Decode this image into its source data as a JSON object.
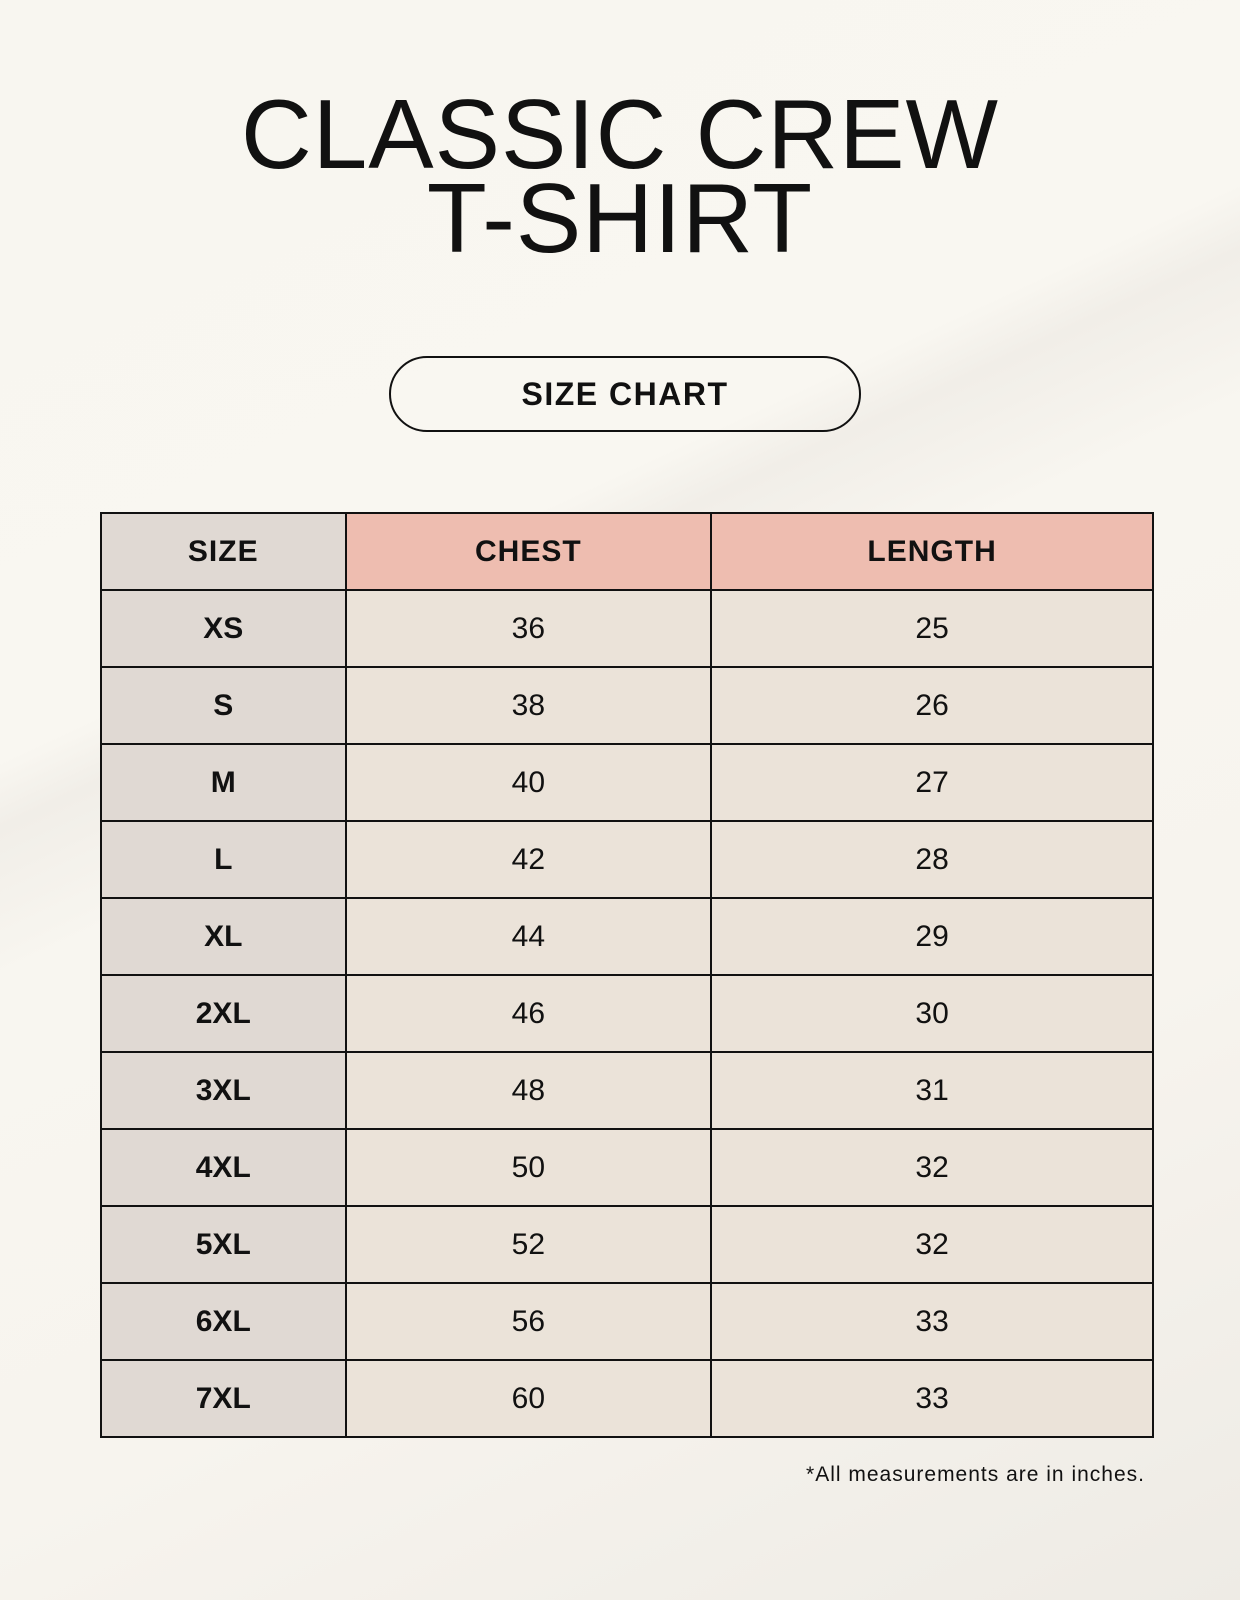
{
  "title": {
    "line1": "CLASSIC CREW",
    "line2": "T-SHIRT"
  },
  "badge": "SIZE CHART",
  "table": {
    "headers": [
      "SIZE",
      "CHEST",
      "LENGTH"
    ],
    "rows": [
      [
        "XS",
        "36",
        "25"
      ],
      [
        "S",
        "38",
        "26"
      ],
      [
        "M",
        "40",
        "27"
      ],
      [
        "L",
        "42",
        "28"
      ],
      [
        "XL",
        "44",
        "29"
      ],
      [
        "2XL",
        "46",
        "30"
      ],
      [
        "3XL",
        "48",
        "31"
      ],
      [
        "4XL",
        "50",
        "32"
      ],
      [
        "5XL",
        "52",
        "32"
      ],
      [
        "6XL",
        "56",
        "33"
      ],
      [
        "7XL",
        "60",
        "33"
      ]
    ]
  },
  "footnote": "*All measurements are in inches.",
  "colors": {
    "header_accent": "#eebdb0",
    "size_column": "#e0d9d3",
    "value_cells": "#ebe3d9"
  }
}
